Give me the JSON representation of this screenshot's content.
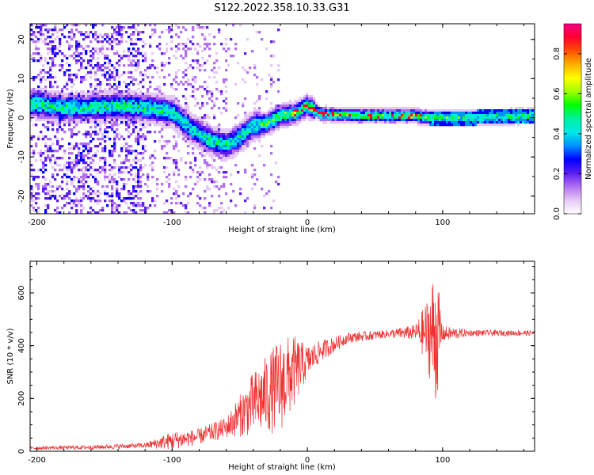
{
  "title": "S122.2022.358.10.33.G31",
  "chart_data": [
    {
      "type": "heatmap",
      "xlabel": "Height of straight line (km)",
      "ylabel": "Frequency (Hz)",
      "xlim": [
        -205,
        168
      ],
      "ylim": [
        -24.5,
        24
      ],
      "xticks": [
        -200,
        -100,
        0,
        100
      ],
      "yticks": [
        -20,
        -10,
        0,
        10,
        20
      ],
      "colorbar": {
        "label": "Normalized spectral amplitude",
        "range": [
          0,
          0.95
        ],
        "ticks": [
          "0.0",
          "0.2",
          "0.4",
          "0.6",
          "0.8"
        ],
        "colors": [
          "#ffffff",
          "#e6c8f5",
          "#b070f0",
          "#5a1ef0",
          "#0000ff",
          "#0090ff",
          "#00e8e8",
          "#00f0a0",
          "#00ff00",
          "#a0ff00",
          "#ffff00",
          "#ffb000",
          "#ff5000",
          "#ff0030",
          "#f00080"
        ]
      },
      "ridge": [
        {
          "x": -200,
          "f": 3.5
        },
        {
          "x": -180,
          "f": 2.5
        },
        {
          "x": -160,
          "f": 2.5
        },
        {
          "x": -140,
          "f": 3.0
        },
        {
          "x": -120,
          "f": 2.5
        },
        {
          "x": -100,
          "f": 1.5
        },
        {
          "x": -85,
          "f": -3.0
        },
        {
          "x": -70,
          "f": -6.0
        },
        {
          "x": -60,
          "f": -7.0
        },
        {
          "x": -50,
          "f": -5.0
        },
        {
          "x": -40,
          "f": -2.0
        },
        {
          "x": -30,
          "f": -1.5
        },
        {
          "x": -20,
          "f": 0.5
        },
        {
          "x": -10,
          "f": 1.0
        },
        {
          "x": 0,
          "f": 3.0
        },
        {
          "x": 10,
          "f": 1.0
        },
        {
          "x": 40,
          "f": 0.5
        },
        {
          "x": 80,
          "f": 0.5
        },
        {
          "x": 90,
          "f": 0.0
        },
        {
          "x": 120,
          "f": 0.0
        },
        {
          "x": 168,
          "f": 0.5
        }
      ]
    },
    {
      "type": "line",
      "xlabel": "Height of straight line (km)",
      "ylabel": "SNR (10 * v/v)",
      "xlim": [
        -205,
        168
      ],
      "ylim": [
        0,
        720
      ],
      "xticks": [
        -200,
        -100,
        0,
        100
      ],
      "yticks": [
        0,
        200,
        400,
        600
      ],
      "color": "#ee3030",
      "envelope": [
        {
          "x": -205,
          "mean": 12,
          "amp": 6
        },
        {
          "x": -160,
          "mean": 15,
          "amp": 8
        },
        {
          "x": -120,
          "mean": 22,
          "amp": 10
        },
        {
          "x": -100,
          "mean": 40,
          "amp": 35
        },
        {
          "x": -80,
          "mean": 55,
          "amp": 30
        },
        {
          "x": -60,
          "mean": 90,
          "amp": 40
        },
        {
          "x": -40,
          "mean": 180,
          "amp": 120
        },
        {
          "x": -20,
          "mean": 250,
          "amp": 180
        },
        {
          "x": -10,
          "mean": 300,
          "amp": 140
        },
        {
          "x": 0,
          "mean": 340,
          "amp": 60
        },
        {
          "x": 10,
          "mean": 380,
          "amp": 40
        },
        {
          "x": 30,
          "mean": 430,
          "amp": 20
        },
        {
          "x": 60,
          "mean": 445,
          "amp": 15
        },
        {
          "x": 80,
          "mean": 450,
          "amp": 30
        },
        {
          "x": 88,
          "mean": 450,
          "amp": 120
        },
        {
          "x": 95,
          "mean": 440,
          "amp": 280
        },
        {
          "x": 100,
          "mean": 445,
          "amp": 30
        },
        {
          "x": 120,
          "mean": 448,
          "amp": 12
        },
        {
          "x": 168,
          "mean": 448,
          "amp": 10
        }
      ]
    }
  ]
}
